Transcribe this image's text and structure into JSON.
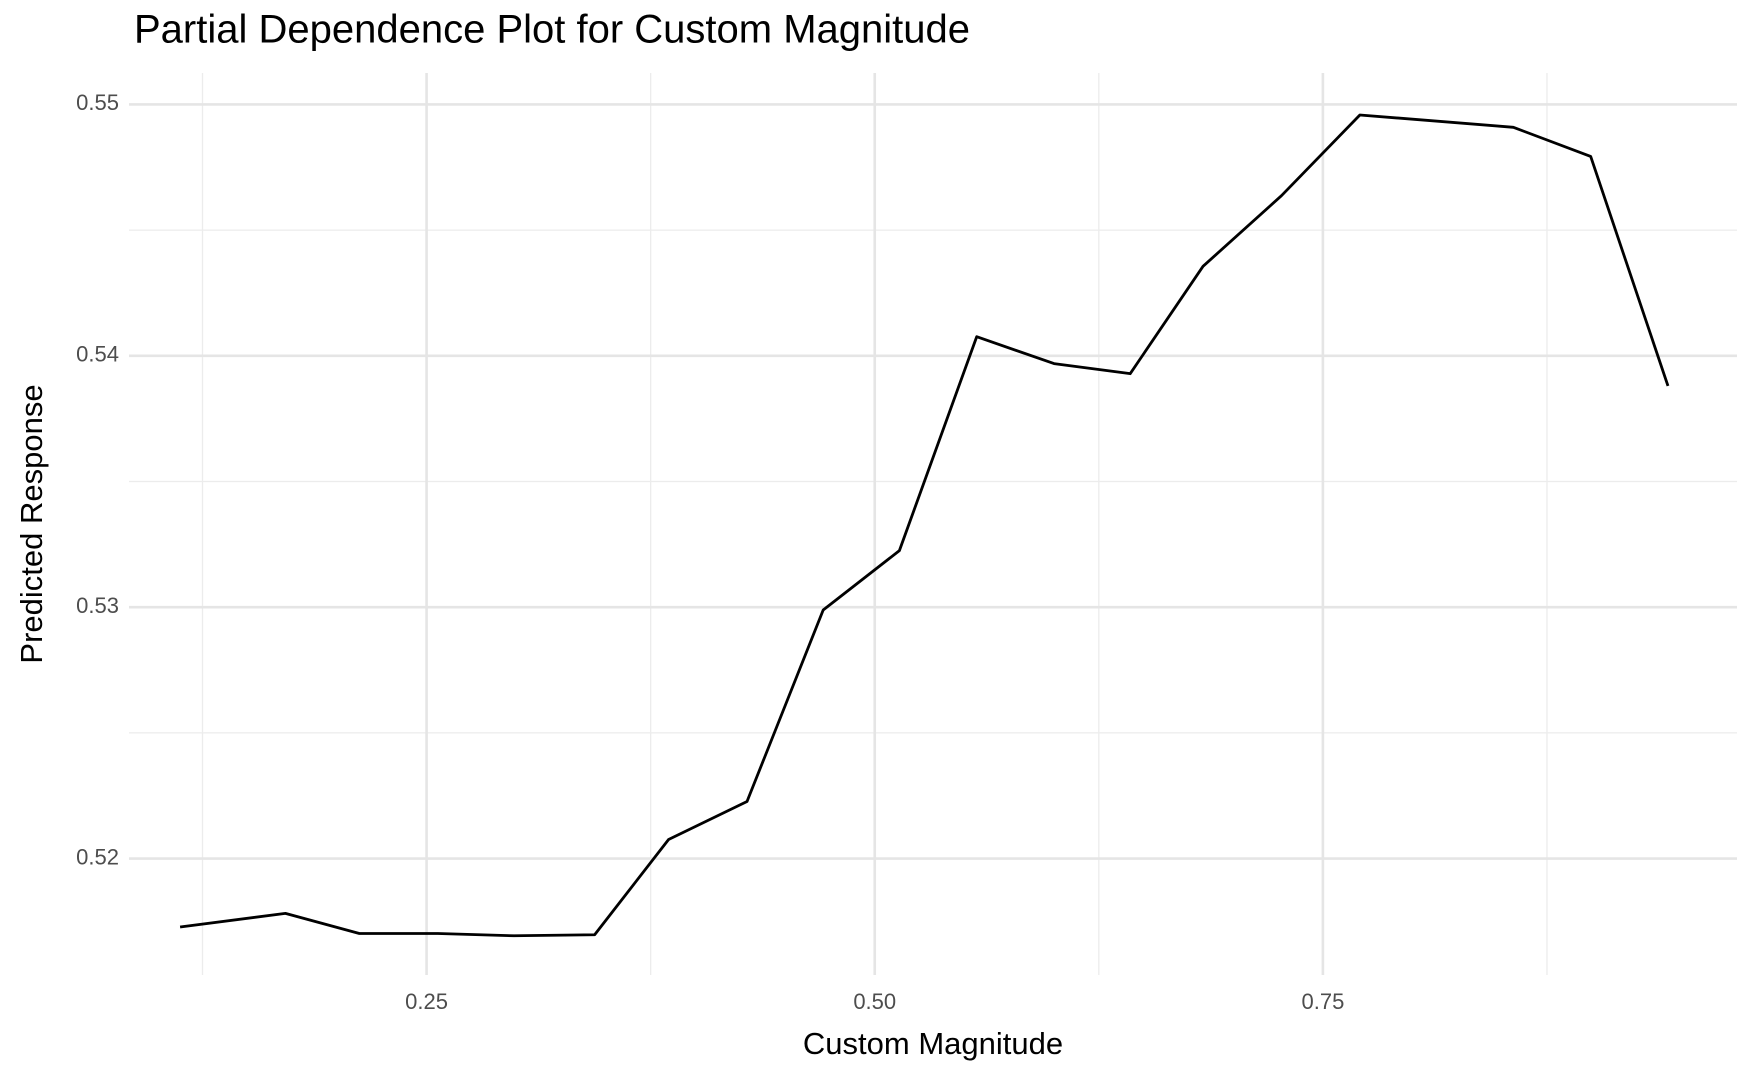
{
  "chart_data": {
    "type": "line",
    "title": "Partial Dependence Plot for Custom Magnitude",
    "x_label": "Custom Magnitude",
    "y_label": "Predicted Response",
    "x": [
      0.1125,
      0.17125,
      0.2125,
      0.2563,
      0.29875,
      0.34375,
      0.385,
      0.42875,
      0.47125,
      0.51375,
      0.55688,
      0.6,
      0.6425,
      0.68313,
      0.72688,
      0.77063,
      0.85625,
      0.89938,
      0.9425
    ],
    "series": [
      {
        "color": "#000000",
        "values": [
          0.51728,
          0.51782,
          0.51702,
          0.51702,
          0.51693,
          0.51697,
          0.52076,
          0.52227,
          0.52989,
          0.53225,
          0.54076,
          0.53969,
          0.53929,
          0.54356,
          0.54637,
          0.54958,
          0.54909,
          0.54793,
          0.5388
        ]
      }
    ],
    "xlim": [
      0.084,
      0.981
    ],
    "ylim": [
      0.51537,
      0.55125
    ],
    "xticks": [
      {
        "value": 0.25,
        "label": "0.25"
      },
      {
        "value": 0.5,
        "label": "0.50"
      },
      {
        "value": 0.75,
        "label": "0.75"
      }
    ],
    "yticks": [
      0.52,
      0.53,
      0.54,
      0.55
    ],
    "x_minor_ticks": [
      0.125,
      0.375,
      0.625,
      0.875
    ],
    "y_minor_ticks": [
      0.525,
      0.535,
      0.545
    ],
    "grid": true
  }
}
